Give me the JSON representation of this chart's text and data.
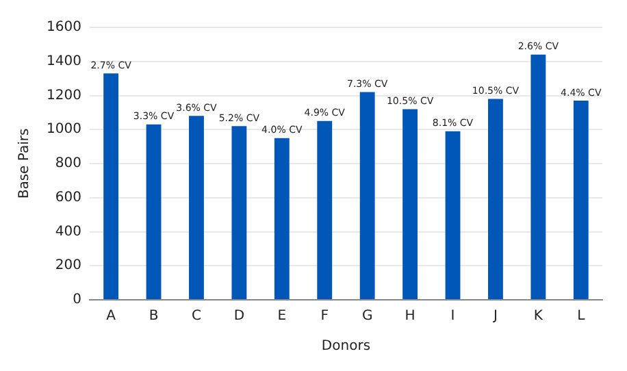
{
  "chart_data": {
    "type": "bar",
    "xlabel": "Donors",
    "ylabel": "Base Pairs",
    "categories": [
      "A",
      "B",
      "C",
      "D",
      "E",
      "F",
      "G",
      "H",
      "I",
      "J",
      "K",
      "L"
    ],
    "values": [
      1330,
      1030,
      1080,
      1020,
      950,
      1050,
      1220,
      1120,
      990,
      1180,
      1440,
      1170
    ],
    "annotations": [
      {
        "text": "2.7% CV",
        "x": "A",
        "y": 1330
      },
      {
        "text": "3.3% CV",
        "x": "B",
        "y": 1030
      },
      {
        "text": "3.6% CV",
        "x": "C",
        "y": 1080
      },
      {
        "text": "5.2% CV",
        "x": "D",
        "y": 1020
      },
      {
        "text": "4.0% CV",
        "x": "E",
        "y": 950
      },
      {
        "text": "4.9% CV",
        "x": "F",
        "y": 1050
      },
      {
        "text": "7.3% CV",
        "x": "G",
        "y": 1220
      },
      {
        "text": "10.5% CV",
        "x": "H",
        "y": 1120
      },
      {
        "text": "8.1% CV",
        "x": "I",
        "y": 990
      },
      {
        "text": "10.5% CV",
        "x": "J",
        "y": 1180
      },
      {
        "text": "2.6% CV",
        "x": "K",
        "y": 1440
      },
      {
        "text": "4.4% CV",
        "x": "L",
        "y": 1170
      }
    ],
    "color": "#0057b8",
    "ylim": [
      0,
      1600
    ],
    "yticks": [
      0,
      200,
      400,
      600,
      800,
      1000,
      1200,
      1400,
      1600
    ],
    "grid": "y",
    "legend": false
  }
}
